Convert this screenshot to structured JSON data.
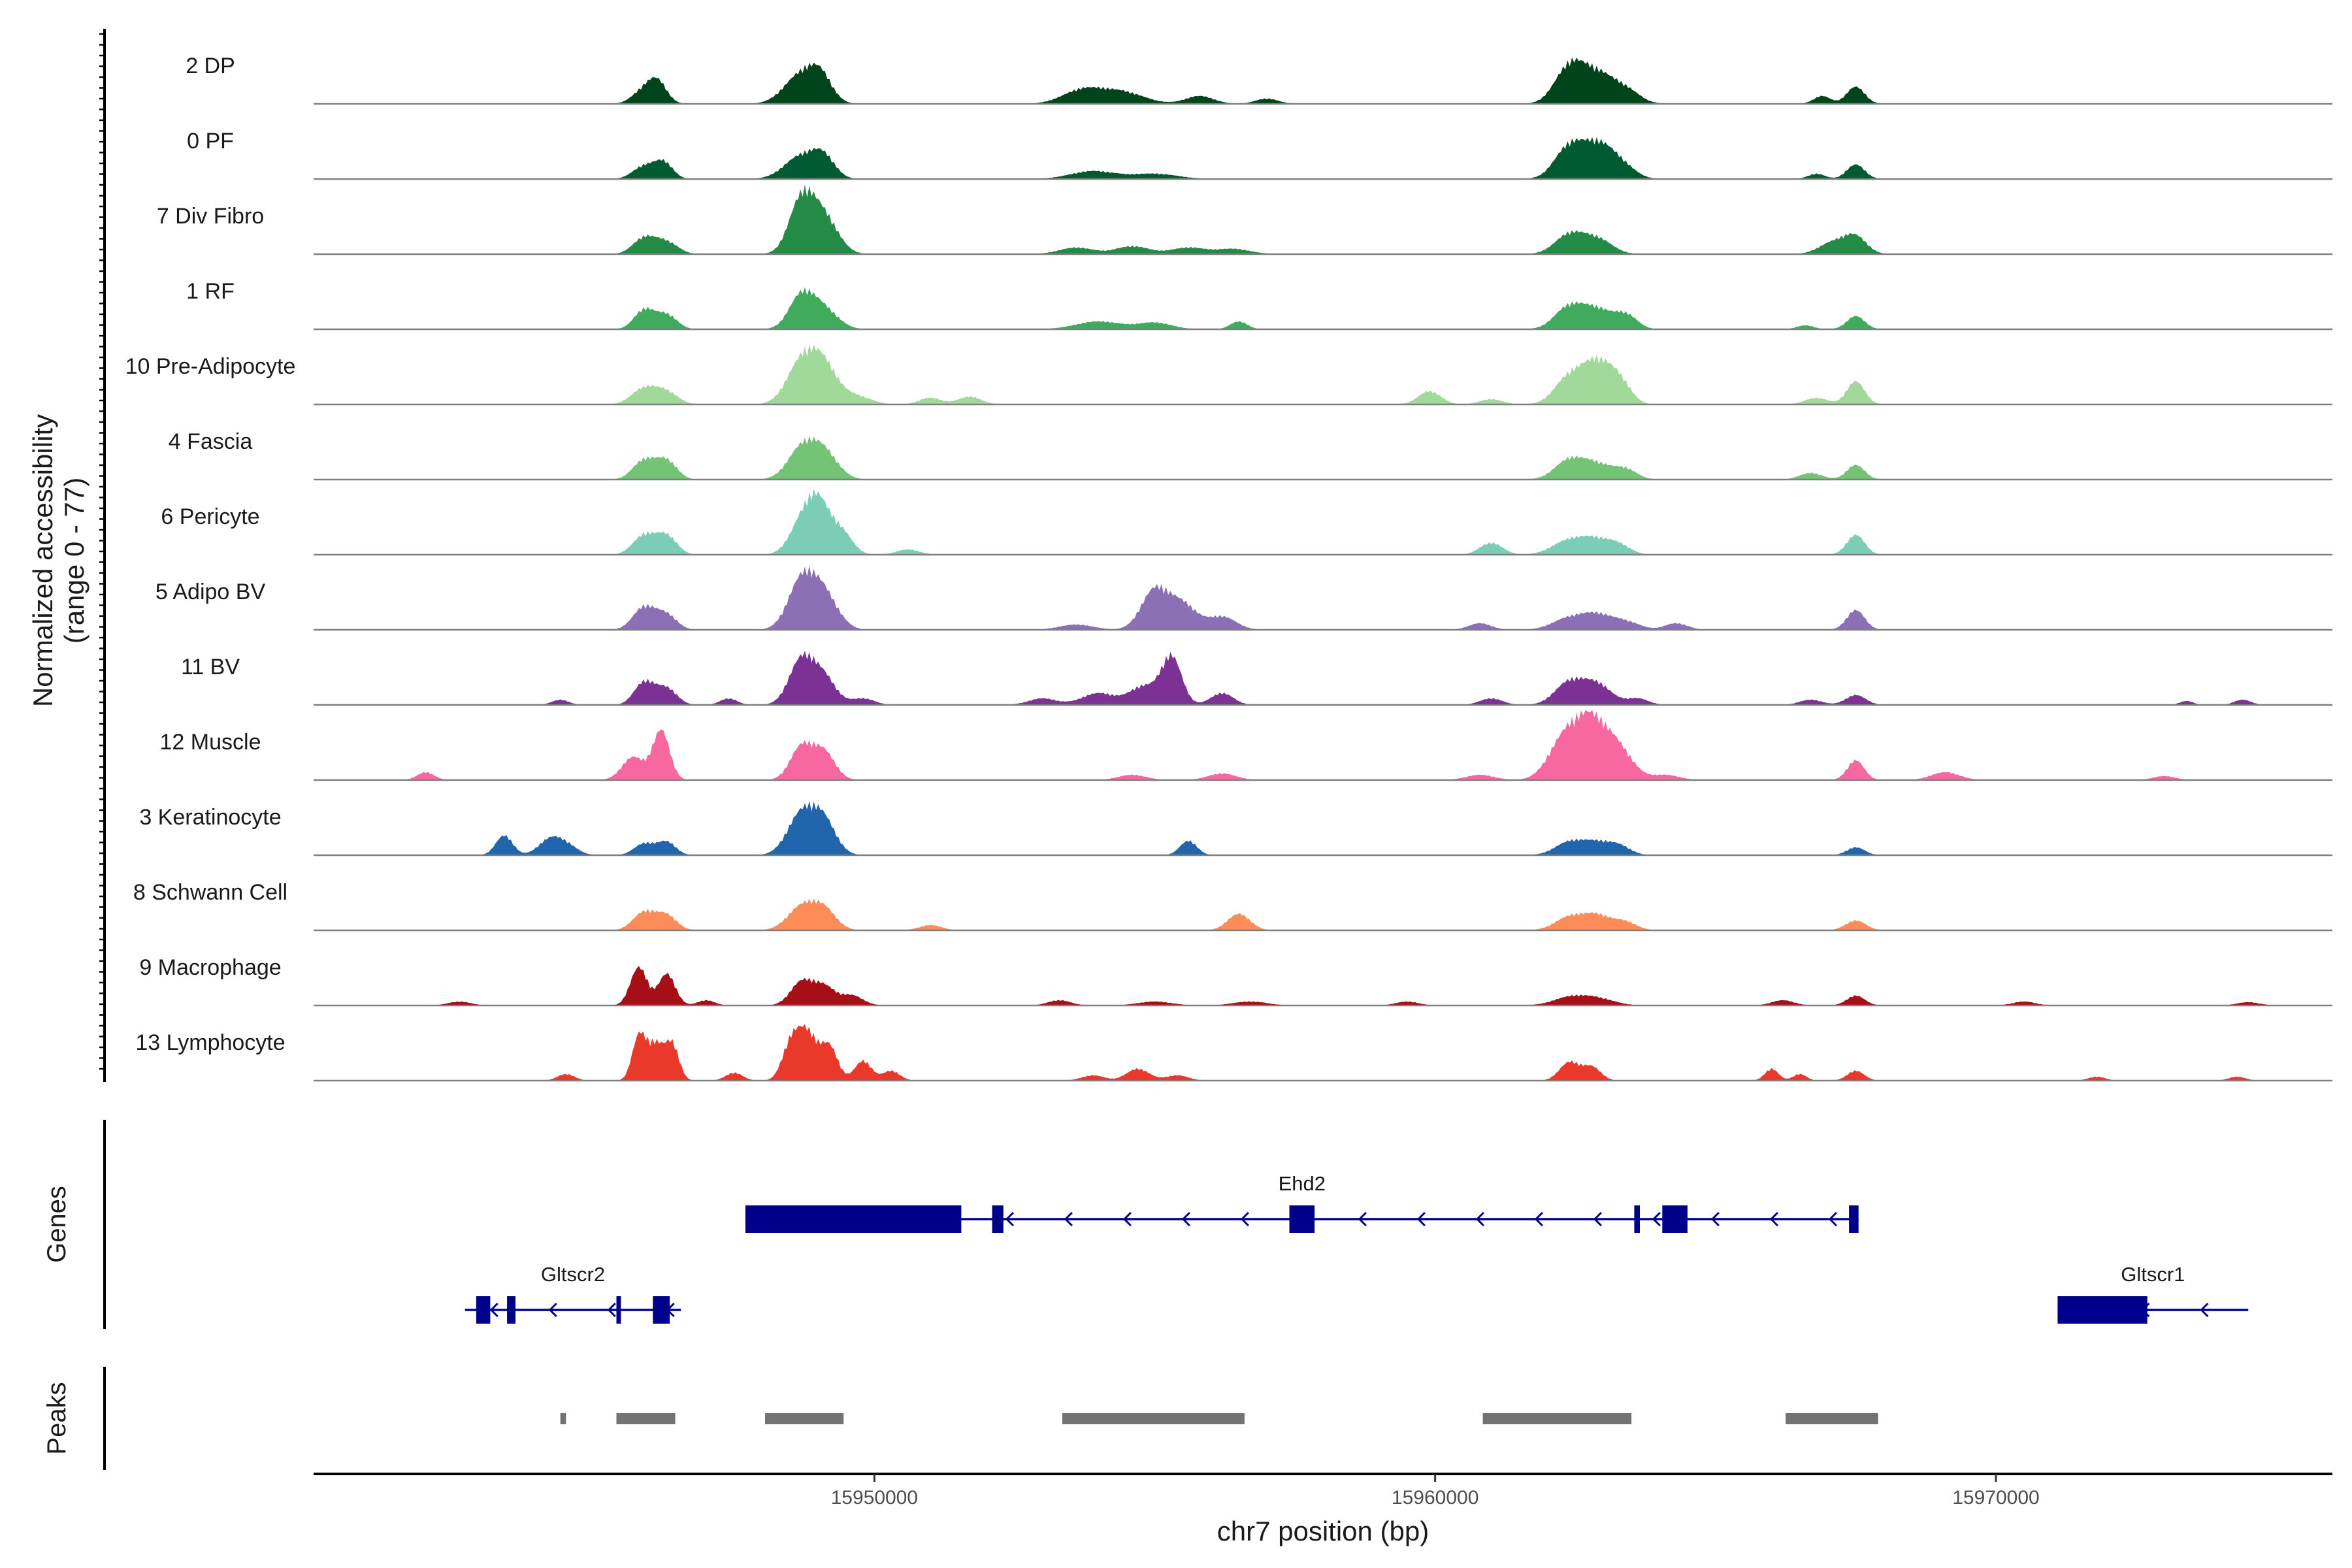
{
  "chart_data": {
    "type": "area",
    "title": "",
    "xlabel": "chr7 position (bp)",
    "ylabel": "Normalized accessibility",
    "ylabel_range": "(range 0 - 77)",
    "xlim": [
      15940000,
      15976000
    ],
    "ylim": [
      0,
      77
    ],
    "x_ticks": [
      15950000,
      15960000,
      15970000
    ],
    "x_tick_labels": [
      "15950000",
      "15960000",
      "15970000"
    ],
    "tracks": [
      {
        "name": "2 DP",
        "color": "#00441b",
        "peaks": [
          [
            15945900,
            0.22,
            200
          ],
          [
            15946150,
            0.28,
            160
          ],
          [
            15948700,
            0.45,
            300
          ],
          [
            15949050,
            0.32,
            200
          ],
          [
            15953700,
            0.2,
            350
          ],
          [
            15954400,
            0.18,
            400
          ],
          [
            15955800,
            0.12,
            250
          ],
          [
            15957000,
            0.08,
            200
          ],
          [
            15962400,
            0.56,
            260
          ],
          [
            15962900,
            0.42,
            280
          ],
          [
            15963400,
            0.2,
            250
          ],
          [
            15967500,
            0.26,
            160
          ],
          [
            15966900,
            0.12,
            150
          ]
        ]
      },
      {
        "name": "0 PF",
        "color": "#005a32",
        "peaks": [
          [
            15945900,
            0.2,
            200
          ],
          [
            15946250,
            0.24,
            160
          ],
          [
            15948700,
            0.35,
            300
          ],
          [
            15949100,
            0.28,
            200
          ],
          [
            15953900,
            0.12,
            400
          ],
          [
            15955000,
            0.08,
            400
          ],
          [
            15962400,
            0.5,
            260
          ],
          [
            15962900,
            0.45,
            250
          ],
          [
            15963300,
            0.22,
            250
          ],
          [
            15967500,
            0.22,
            160
          ],
          [
            15966800,
            0.08,
            150
          ]
        ]
      },
      {
        "name": "7 Div Fibro",
        "color": "#238b45",
        "peaks": [
          [
            15945900,
            0.25,
            200
          ],
          [
            15946300,
            0.18,
            200
          ],
          [
            15948700,
            0.8,
            220
          ],
          [
            15949100,
            0.55,
            250
          ],
          [
            15953600,
            0.1,
            300
          ],
          [
            15954600,
            0.12,
            300
          ],
          [
            15955600,
            0.1,
            300
          ],
          [
            15956400,
            0.08,
            300
          ],
          [
            15962400,
            0.3,
            260
          ],
          [
            15962900,
            0.22,
            260
          ],
          [
            15967100,
            0.18,
            250
          ],
          [
            15967500,
            0.25,
            200
          ]
        ]
      },
      {
        "name": "1 RF",
        "color": "#41ab5d",
        "peaks": [
          [
            15945900,
            0.3,
            180
          ],
          [
            15946300,
            0.22,
            180
          ],
          [
            15948700,
            0.5,
            220
          ],
          [
            15949100,
            0.3,
            250
          ],
          [
            15954000,
            0.12,
            400
          ],
          [
            15955000,
            0.1,
            300
          ],
          [
            15956500,
            0.12,
            150
          ],
          [
            15962400,
            0.35,
            260
          ],
          [
            15962900,
            0.28,
            250
          ],
          [
            15963400,
            0.22,
            200
          ],
          [
            15967500,
            0.2,
            160
          ],
          [
            15966600,
            0.06,
            150
          ]
        ]
      },
      {
        "name": "10 Pre-Adipocyte",
        "color": "#a1d99b",
        "peaks": [
          [
            15945900,
            0.25,
            220
          ],
          [
            15946300,
            0.18,
            200
          ],
          [
            15948700,
            0.62,
            260
          ],
          [
            15949100,
            0.55,
            250
          ],
          [
            15949700,
            0.12,
            250
          ],
          [
            15951000,
            0.1,
            200
          ],
          [
            15951700,
            0.12,
            200
          ],
          [
            15959900,
            0.2,
            200
          ],
          [
            15961000,
            0.08,
            200
          ],
          [
            15962400,
            0.42,
            260
          ],
          [
            15962900,
            0.6,
            250
          ],
          [
            15963300,
            0.3,
            200
          ],
          [
            15966800,
            0.1,
            200
          ],
          [
            15967500,
            0.35,
            160
          ]
        ]
      },
      {
        "name": "4 Fascia",
        "color": "#74c476",
        "peaks": [
          [
            15945900,
            0.3,
            200
          ],
          [
            15946300,
            0.28,
            180
          ],
          [
            15948700,
            0.45,
            250
          ],
          [
            15949100,
            0.4,
            250
          ],
          [
            15962400,
            0.3,
            260
          ],
          [
            15962900,
            0.22,
            260
          ],
          [
            15963400,
            0.15,
            200
          ],
          [
            15966700,
            0.1,
            200
          ],
          [
            15967500,
            0.22,
            160
          ]
        ]
      },
      {
        "name": "6 Pericyte",
        "color": "#7bcdb5",
        "peaks": [
          [
            15945900,
            0.3,
            200
          ],
          [
            15946300,
            0.28,
            180
          ],
          [
            15948700,
            0.45,
            220
          ],
          [
            15949000,
            0.7,
            200
          ],
          [
            15949400,
            0.35,
            200
          ],
          [
            15950600,
            0.08,
            200
          ],
          [
            15961000,
            0.18,
            200
          ],
          [
            15962400,
            0.22,
            300
          ],
          [
            15962900,
            0.2,
            260
          ],
          [
            15963300,
            0.12,
            200
          ],
          [
            15967500,
            0.3,
            160
          ]
        ]
      },
      {
        "name": "5 Adipo BV",
        "color": "#8b70b5",
        "peaks": [
          [
            15945900,
            0.35,
            200
          ],
          [
            15946300,
            0.22,
            180
          ],
          [
            15948700,
            0.72,
            240
          ],
          [
            15949100,
            0.52,
            250
          ],
          [
            15953600,
            0.08,
            300
          ],
          [
            15955000,
            0.6,
            240
          ],
          [
            15955500,
            0.38,
            250
          ],
          [
            15956200,
            0.2,
            250
          ],
          [
            15960800,
            0.1,
            200
          ],
          [
            15962400,
            0.18,
            300
          ],
          [
            15962900,
            0.2,
            260
          ],
          [
            15963400,
            0.12,
            250
          ],
          [
            15964300,
            0.1,
            200
          ],
          [
            15967500,
            0.3,
            160
          ]
        ]
      },
      {
        "name": "11 BV",
        "color": "#7b3294",
        "peaks": [
          [
            15944400,
            0.08,
            150
          ],
          [
            15945900,
            0.35,
            180
          ],
          [
            15946300,
            0.25,
            180
          ],
          [
            15947400,
            0.1,
            150
          ],
          [
            15948700,
            0.68,
            220
          ],
          [
            15949100,
            0.4,
            220
          ],
          [
            15949800,
            0.1,
            200
          ],
          [
            15953000,
            0.1,
            250
          ],
          [
            15954000,
            0.18,
            300
          ],
          [
            15954800,
            0.28,
            250
          ],
          [
            15955300,
            0.72,
            180
          ],
          [
            15956200,
            0.18,
            200
          ],
          [
            15961000,
            0.1,
            200
          ],
          [
            15962400,
            0.35,
            260
          ],
          [
            15962900,
            0.3,
            250
          ],
          [
            15963600,
            0.1,
            200
          ],
          [
            15966700,
            0.08,
            200
          ],
          [
            15967500,
            0.15,
            180
          ],
          [
            15973400,
            0.06,
            120
          ],
          [
            15974400,
            0.08,
            150
          ]
        ]
      },
      {
        "name": "12 Muscle",
        "color": "#f768a1",
        "peaks": [
          [
            15942000,
            0.12,
            150
          ],
          [
            15945700,
            0.35,
            200
          ],
          [
            15946200,
            0.75,
            150
          ],
          [
            15948700,
            0.5,
            200
          ],
          [
            15949100,
            0.42,
            200
          ],
          [
            15954600,
            0.08,
            250
          ],
          [
            15956200,
            0.1,
            250
          ],
          [
            15960800,
            0.08,
            250
          ],
          [
            15962300,
            0.6,
            280
          ],
          [
            15962800,
            0.85,
            280
          ],
          [
            15963300,
            0.4,
            250
          ],
          [
            15964100,
            0.08,
            250
          ],
          [
            15967500,
            0.3,
            150
          ],
          [
            15969100,
            0.12,
            250
          ],
          [
            15973000,
            0.06,
            200
          ]
        ]
      },
      {
        "name": "3 Keratinocyte",
        "color": "#2166ac",
        "peaks": [
          [
            15943400,
            0.3,
            150
          ],
          [
            15944200,
            0.22,
            200
          ],
          [
            15944500,
            0.15,
            200
          ],
          [
            15945900,
            0.18,
            180
          ],
          [
            15946300,
            0.2,
            160
          ],
          [
            15948700,
            0.62,
            250
          ],
          [
            15949100,
            0.48,
            220
          ],
          [
            15955600,
            0.22,
            150
          ],
          [
            15962400,
            0.2,
            260
          ],
          [
            15962900,
            0.18,
            250
          ],
          [
            15963300,
            0.12,
            200
          ],
          [
            15967500,
            0.12,
            160
          ]
        ]
      },
      {
        "name": "8 Schwann Cell",
        "color": "#fc8d59",
        "peaks": [
          [
            15945900,
            0.28,
            200
          ],
          [
            15946300,
            0.22,
            180
          ],
          [
            15948700,
            0.35,
            250
          ],
          [
            15949100,
            0.3,
            220
          ],
          [
            15951000,
            0.08,
            200
          ],
          [
            15956500,
            0.25,
            200
          ],
          [
            15962400,
            0.2,
            260
          ],
          [
            15962900,
            0.22,
            250
          ],
          [
            15963400,
            0.12,
            200
          ],
          [
            15967500,
            0.15,
            180
          ]
        ]
      },
      {
        "name": "9 Macrophage",
        "color": "#a50f15",
        "peaks": [
          [
            15942600,
            0.06,
            200
          ],
          [
            15945800,
            0.58,
            150
          ],
          [
            15946300,
            0.48,
            150
          ],
          [
            15947000,
            0.08,
            150
          ],
          [
            15948700,
            0.35,
            200
          ],
          [
            15949100,
            0.28,
            200
          ],
          [
            15949600,
            0.15,
            200
          ],
          [
            15953300,
            0.08,
            200
          ],
          [
            15955000,
            0.06,
            300
          ],
          [
            15956700,
            0.06,
            300
          ],
          [
            15959500,
            0.06,
            200
          ],
          [
            15962400,
            0.12,
            300
          ],
          [
            15962900,
            0.1,
            300
          ],
          [
            15966200,
            0.08,
            200
          ],
          [
            15967500,
            0.15,
            160
          ],
          [
            15970500,
            0.06,
            200
          ],
          [
            15974500,
            0.05,
            200
          ]
        ]
      },
      {
        "name": "13 Lymphocyte",
        "color": "#e8392a",
        "peaks": [
          [
            15944500,
            0.1,
            150
          ],
          [
            15945800,
            0.65,
            120
          ],
          [
            15946100,
            0.55,
            150
          ],
          [
            15946400,
            0.52,
            120
          ],
          [
            15947500,
            0.12,
            150
          ],
          [
            15948500,
            0.5,
            150
          ],
          [
            15948800,
            0.72,
            180
          ],
          [
            15949200,
            0.5,
            150
          ],
          [
            15949800,
            0.3,
            150
          ],
          [
            15950300,
            0.15,
            150
          ],
          [
            15953900,
            0.08,
            200
          ],
          [
            15954700,
            0.18,
            200
          ],
          [
            15955400,
            0.08,
            200
          ],
          [
            15962400,
            0.28,
            180
          ],
          [
            15962800,
            0.2,
            160
          ],
          [
            15966000,
            0.18,
            120
          ],
          [
            15966500,
            0.1,
            120
          ],
          [
            15967500,
            0.15,
            150
          ],
          [
            15971800,
            0.06,
            150
          ],
          [
            15974300,
            0.06,
            150
          ]
        ]
      }
    ],
    "genes": {
      "title": "Genes",
      "items": [
        {
          "name": "Ehd2",
          "strand": "-",
          "start": 15947700,
          "end": 15967550,
          "row": 0,
          "exons": [
            [
              15947700,
              15951550
            ],
            [
              15952100,
              15952300
            ],
            [
              15957400,
              15957850
            ],
            [
              15963550,
              15963650
            ],
            [
              15964050,
              15964500
            ],
            [
              15967380,
              15967550
            ]
          ]
        },
        {
          "name": "Gltscr2",
          "strand": "-",
          "start": 15942700,
          "end": 15946550,
          "row": 1,
          "exons": [
            [
              15942900,
              15943150
            ],
            [
              15943450,
              15943600
            ],
            [
              15945400,
              15945480
            ],
            [
              15946050,
              15946350
            ]
          ]
        },
        {
          "name": "Gltscr1",
          "strand": "-",
          "start": 15971100,
          "end": 15974500,
          "row": 1,
          "exons": [
            [
              15971100,
              15972700
            ]
          ]
        }
      ]
    },
    "peaks": {
      "title": "Peaks",
      "color": "#737373",
      "regions": [
        [
          15944400,
          15944500
        ],
        [
          15945400,
          15946450
        ],
        [
          15948050,
          15949450
        ],
        [
          15953350,
          15956600
        ],
        [
          15960850,
          15963500
        ],
        [
          15966250,
          15967900
        ]
      ]
    }
  }
}
